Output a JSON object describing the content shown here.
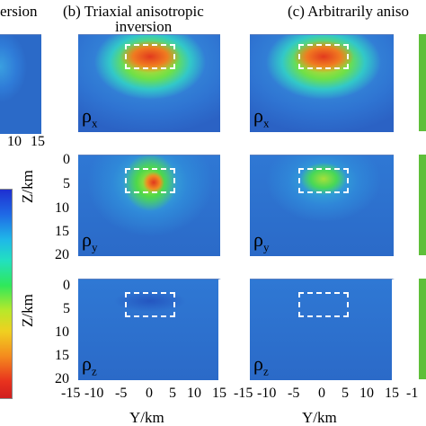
{
  "titles": {
    "a": "ersion",
    "b_line1": "(b) Triaxial anisotropic",
    "b_line2": "inversion",
    "c": "(c) Arbitrarily aniso"
  },
  "panel_labels": {
    "rx": "x",
    "ry": "y",
    "rz": "z",
    "rho": "ρ"
  },
  "axes": {
    "zlabel": "Z/km",
    "ylabel": "Y/km",
    "z_ticks": [
      "0",
      "5",
      "10",
      "15",
      "20"
    ],
    "y_ticks_b": [
      "-15",
      "-10",
      "-5",
      "0",
      "5",
      "10",
      "15"
    ],
    "y_ticks_c": [
      "-15",
      "-10",
      "-5",
      "0",
      "5",
      "10",
      "15"
    ],
    "y_ticks_edge": "-1",
    "a_ticks": [
      "10",
      "15"
    ]
  },
  "colors": {
    "background_blue": "#2f78d4",
    "anomaly_red": "#e03a1e",
    "colorbar_top": "#1f2fd0",
    "colorbar_bottom": "#d01e1e"
  }
}
